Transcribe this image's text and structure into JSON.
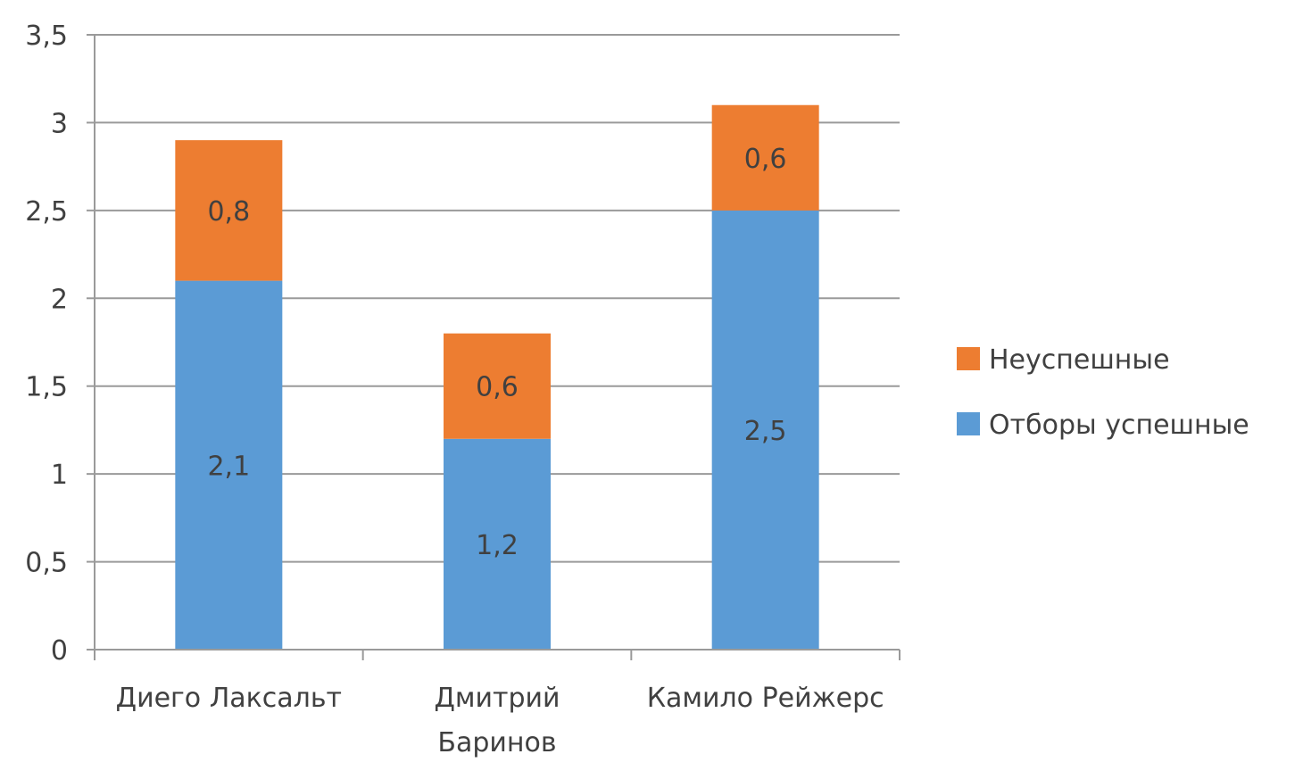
{
  "chart_data": {
    "type": "bar",
    "stacked": true,
    "categories": [
      [
        "Диего Лаксальт"
      ],
      [
        "Дмитрий",
        "Баринов"
      ],
      [
        "Камило Рейжерс"
      ]
    ],
    "series": [
      {
        "name": "Отборы успешные",
        "color": "#5b9bd5",
        "values": [
          2.1,
          1.2,
          2.5
        ],
        "labels": [
          "2,1",
          "1,2",
          "2,5"
        ]
      },
      {
        "name": "Неуспешные",
        "color": "#ed7d31",
        "values": [
          0.8,
          0.6,
          0.6
        ],
        "labels": [
          "0,8",
          "0,6",
          "0,6"
        ]
      }
    ],
    "y_ticks": [
      {
        "value": 0,
        "label": "0"
      },
      {
        "value": 0.5,
        "label": "0,5"
      },
      {
        "value": 1,
        "label": "1"
      },
      {
        "value": 1.5,
        "label": "1,5"
      },
      {
        "value": 2,
        "label": "2"
      },
      {
        "value": 2.5,
        "label": "2,5"
      },
      {
        "value": 3,
        "label": "3"
      },
      {
        "value": 3.5,
        "label": "3,5"
      }
    ],
    "ylim": [
      0,
      3.5
    ],
    "grid": true,
    "legend_position": "right",
    "legend_order": [
      "Неуспешные",
      "Отборы успешные"
    ],
    "title": "",
    "xlabel": "",
    "ylabel": ""
  }
}
